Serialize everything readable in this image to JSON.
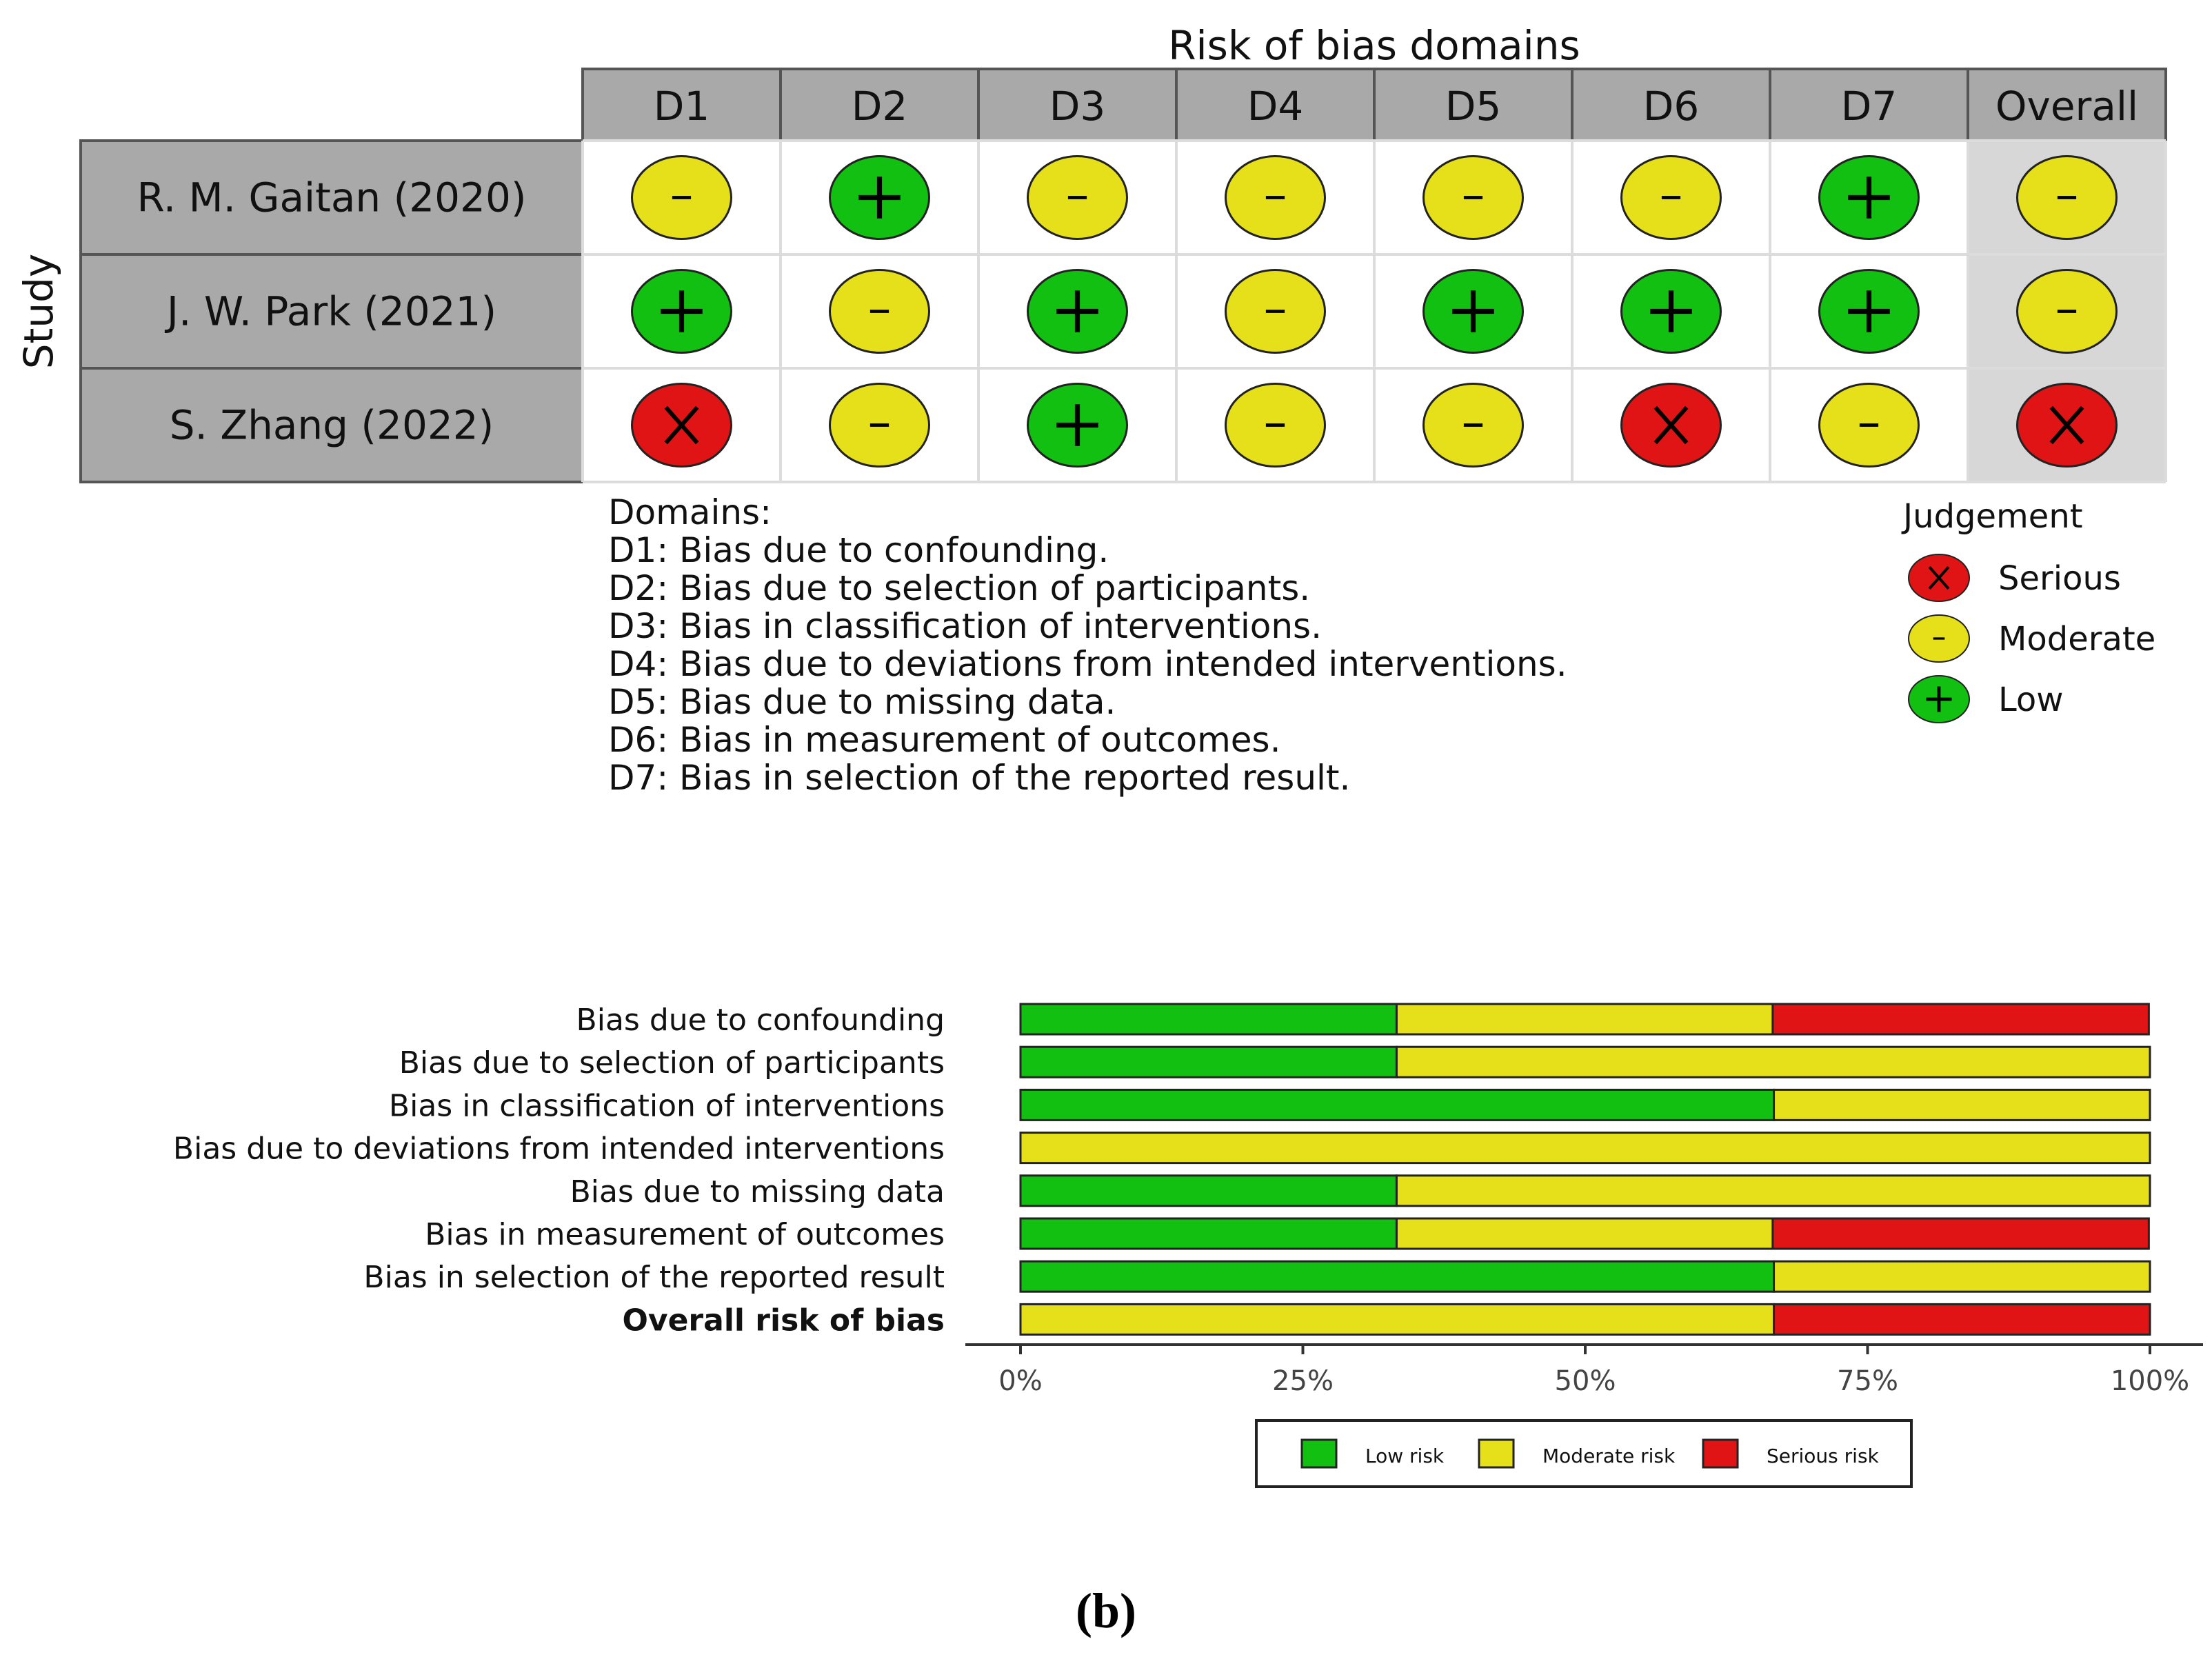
{
  "traffic_light": {
    "title": "Risk of bias domains",
    "y_axis_label": "Study",
    "columns": [
      "D1",
      "D2",
      "D3",
      "D4",
      "D5",
      "D6",
      "D7",
      "Overall"
    ],
    "studies": [
      "R. M. Gaitan (2020)",
      "J. W. Park  (2021)",
      "S. Zhang (2022)"
    ],
    "judgements": [
      [
        "moderate",
        "low",
        "moderate",
        "moderate",
        "moderate",
        "moderate",
        "low",
        "moderate"
      ],
      [
        "low",
        "moderate",
        "low",
        "moderate",
        "low",
        "low",
        "low",
        "moderate"
      ],
      [
        "serious",
        "moderate",
        "low",
        "moderate",
        "moderate",
        "serious",
        "moderate",
        "serious"
      ]
    ],
    "symbols": {
      "serious": "X",
      "moderate": "-",
      "low": "+"
    },
    "domains_heading": "Domains:",
    "domain_definitions": [
      "D1: Bias due to confounding.",
      "D2: Bias due to selection of participants.",
      "D3: Bias in classification of interventions.",
      "D4: Bias due to deviations from intended interventions.",
      "D5: Bias due to missing data.",
      "D6: Bias in measurement of outcomes.",
      "D7: Bias in selection of the reported result."
    ],
    "legend_title": "Judgement",
    "legend": [
      {
        "key": "serious",
        "label": "Serious"
      },
      {
        "key": "moderate",
        "label": "Moderate"
      },
      {
        "key": "low",
        "label": "Low"
      }
    ]
  },
  "colors": {
    "low": "#12c012",
    "moderate": "#e6e01a",
    "serious": "#e01414",
    "header_fill": "#a9a9a9",
    "overall_fill": "#d7d7d7"
  },
  "chart_data": {
    "type": "bar",
    "orientation": "horizontal",
    "stacked": true,
    "categories": [
      "Bias due to confounding",
      "Bias due to selection of participants",
      "Bias in classification of interventions",
      "Bias due to deviations from intended interventions",
      "Bias due to missing data",
      "Bias in measurement of outcomes",
      "Bias in selection of the reported result",
      "Overall risk of bias"
    ],
    "series": [
      {
        "name": "Low risk",
        "color": "#12c012",
        "values": [
          33.3,
          33.3,
          66.7,
          0,
          33.3,
          33.3,
          66.7,
          0
        ]
      },
      {
        "name": "Moderate risk",
        "color": "#e6e01a",
        "values": [
          33.3,
          66.7,
          33.3,
          100,
          66.7,
          33.3,
          33.3,
          66.7
        ]
      },
      {
        "name": "Serious risk",
        "color": "#e01414",
        "values": [
          33.3,
          0,
          0,
          0,
          0,
          33.3,
          0,
          33.3
        ]
      }
    ],
    "x_ticks": [
      "0%",
      "25%",
      "50%",
      "75%",
      "100%"
    ],
    "xlim": [
      0,
      100
    ],
    "legend_position": "bottom"
  },
  "panel_label": "(b)"
}
